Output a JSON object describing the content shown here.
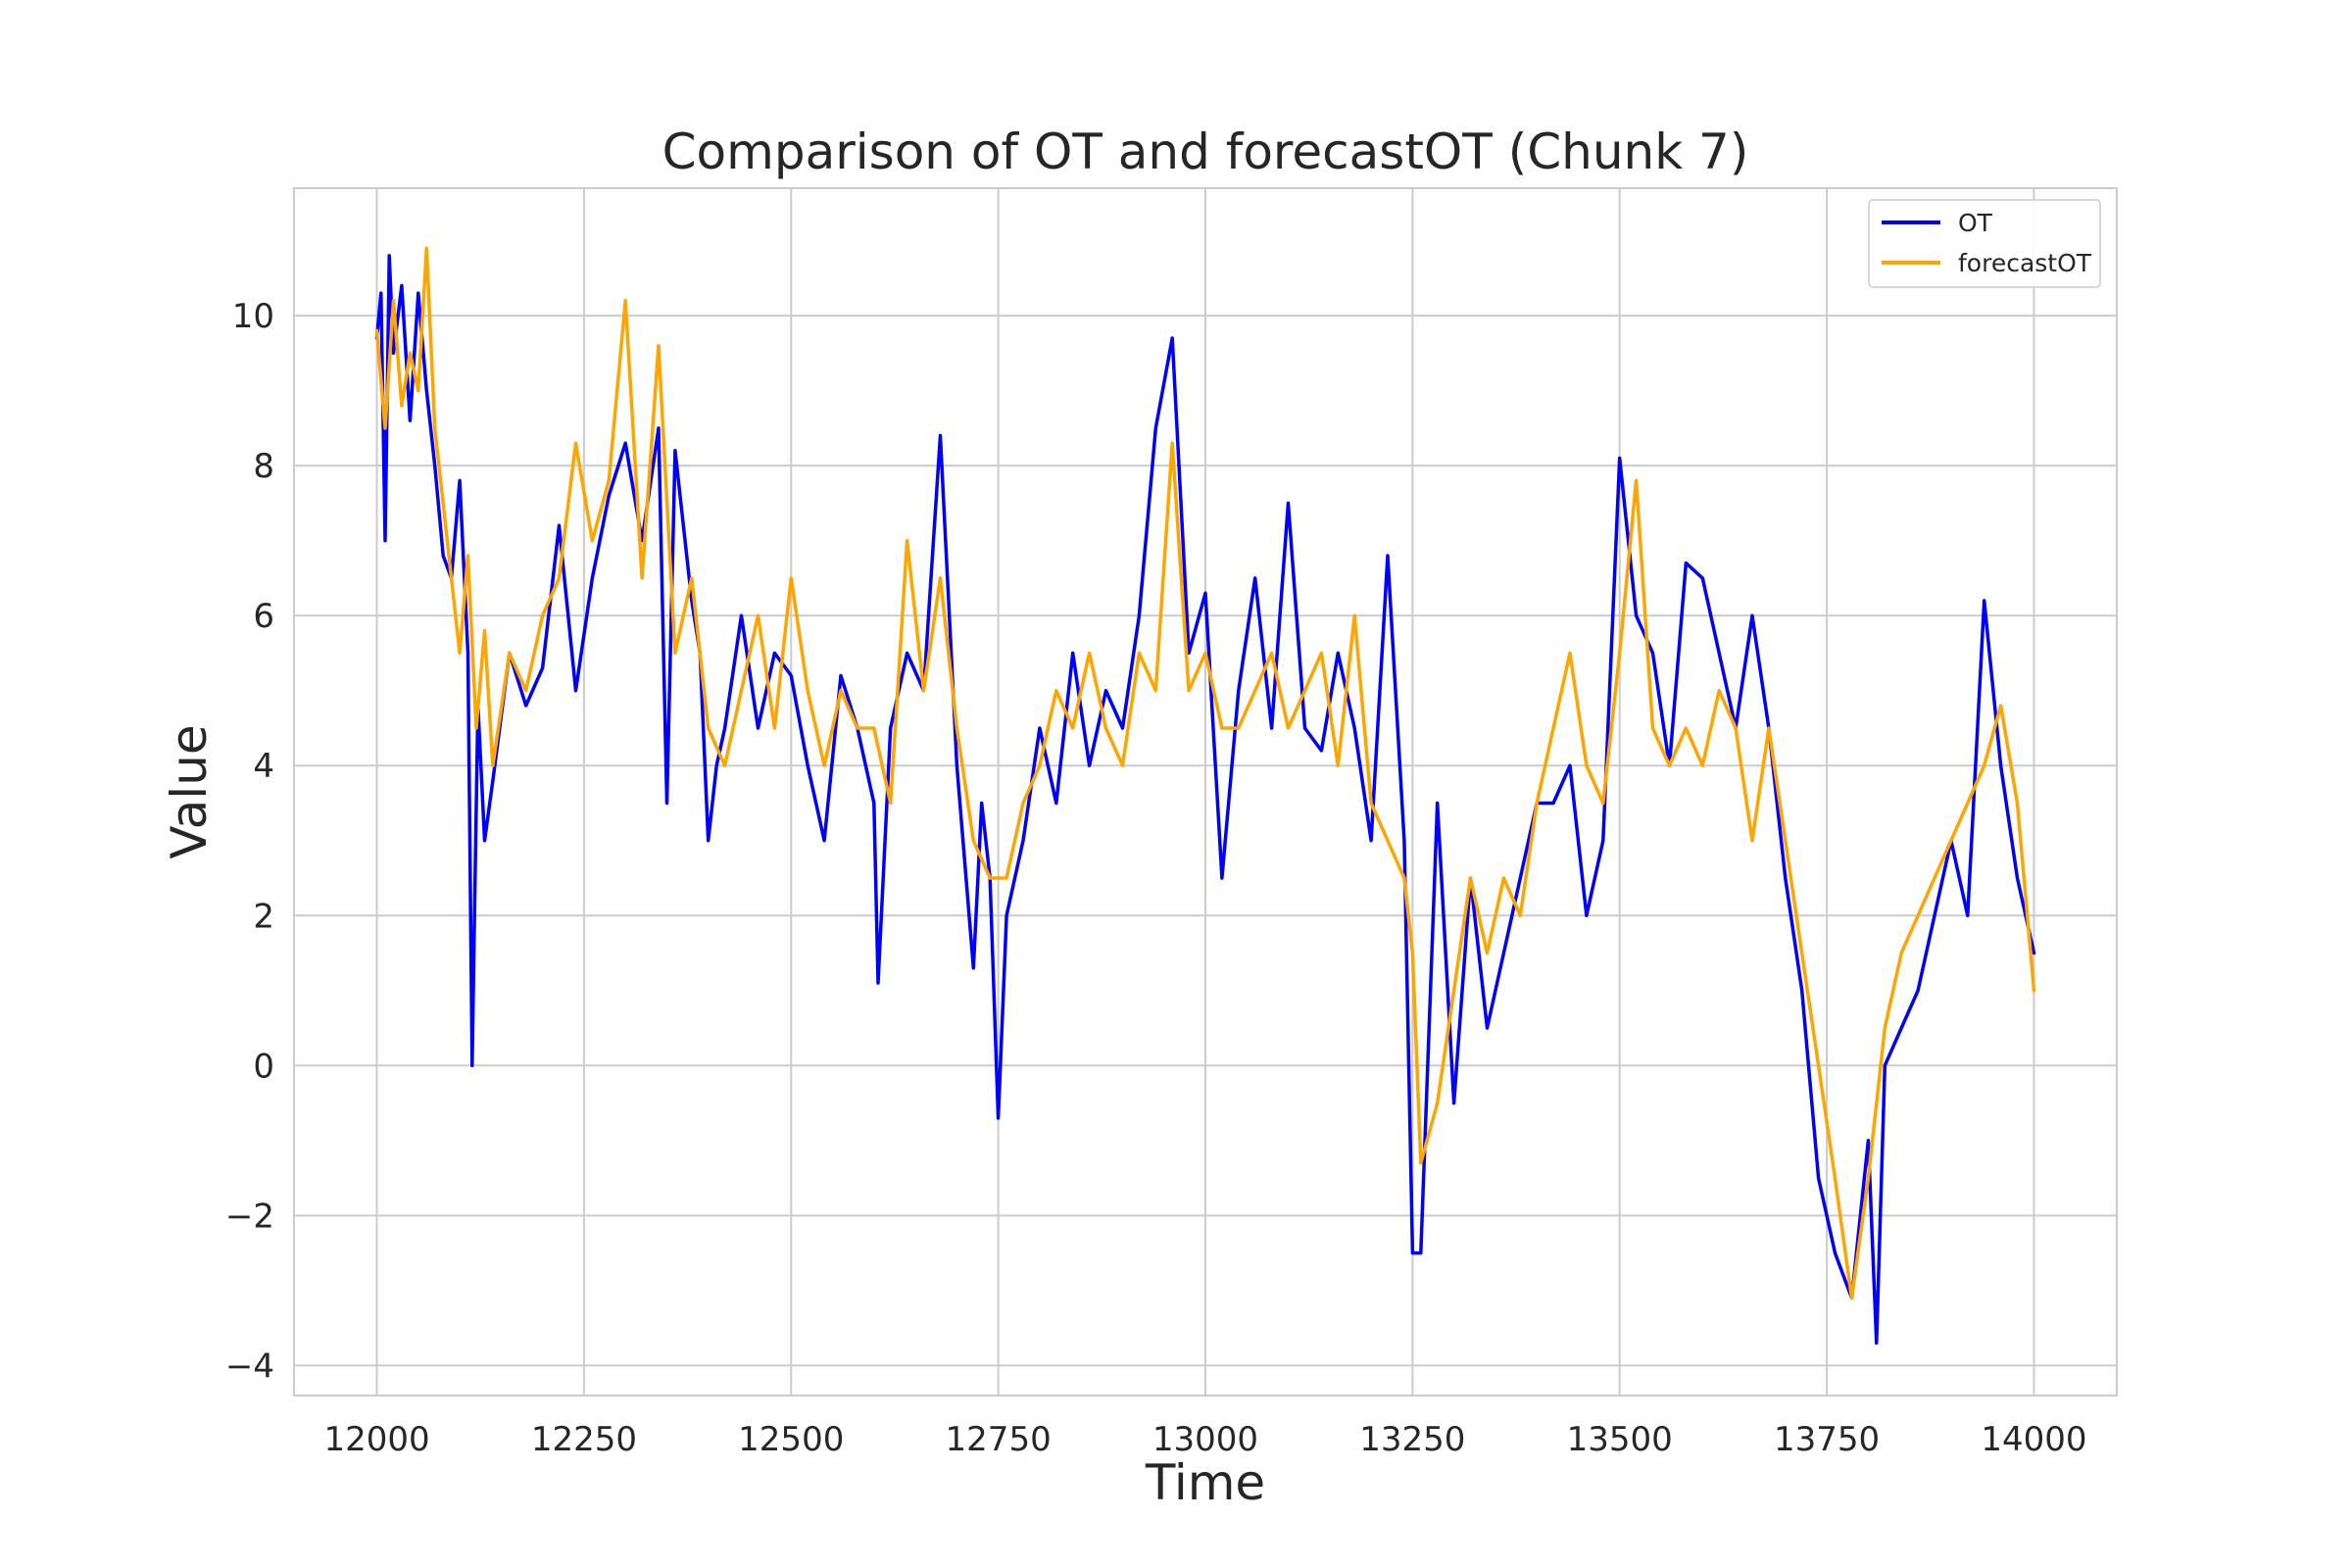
{
  "chart_data": {
    "type": "line",
    "title": "Comparison of OT and forecastOT (Chunk 7)",
    "xlabel": "Time",
    "ylabel": "Value",
    "xlim": [
      11900,
      14100
    ],
    "ylim": [
      -4.4,
      11.7
    ],
    "xticks": [
      12000,
      12250,
      12500,
      12750,
      13000,
      13250,
      13500,
      13750,
      14000
    ],
    "yticks": [
      -4,
      -2,
      0,
      2,
      4,
      6,
      8,
      10
    ],
    "ytick_labels": [
      "−4",
      "−2",
      "0",
      "2",
      "4",
      "6",
      "8",
      "10"
    ],
    "grid": true,
    "legend_position": "top-right",
    "series": [
      {
        "name": "OT",
        "color": "#0000ff",
        "x": [
          12000,
          12005,
          12010,
          12015,
          12020,
          12030,
          12040,
          12050,
          12060,
          12070,
          12080,
          12090,
          12100,
          12110,
          12115,
          12118,
          12122,
          12130,
          12140,
          12160,
          12180,
          12200,
          12220,
          12240,
          12260,
          12280,
          12300,
          12320,
          12340,
          12350,
          12360,
          12380,
          12390,
          12400,
          12410,
          12420,
          12440,
          12460,
          12480,
          12500,
          12520,
          12540,
          12560,
          12580,
          12600,
          12605,
          12620,
          12640,
          12660,
          12680,
          12700,
          12720,
          12730,
          12740,
          12750,
          12760,
          12780,
          12800,
          12820,
          12840,
          12860,
          12880,
          12900,
          12920,
          12940,
          12960,
          12980,
          13000,
          13020,
          13040,
          13060,
          13080,
          13100,
          13120,
          13140,
          13160,
          13180,
          13200,
          13220,
          13240,
          13250,
          13260,
          13280,
          13300,
          13320,
          13340,
          13360,
          13380,
          13400,
          13420,
          13440,
          13460,
          13480,
          13500,
          13520,
          13540,
          13560,
          13580,
          13600,
          13620,
          13640,
          13660,
          13680,
          13700,
          13720,
          13740,
          13760,
          13780,
          13800,
          13810,
          13820,
          13840,
          13860,
          13880,
          13900,
          13920,
          13940,
          13960,
          13980,
          14000
        ],
        "values": [
          9.7,
          10.3,
          7.0,
          10.8,
          9.5,
          10.4,
          8.6,
          10.3,
          9.0,
          8.0,
          6.8,
          6.5,
          7.8,
          5.5,
          0.0,
          2.1,
          4.8,
          3.0,
          3.8,
          5.5,
          4.8,
          5.3,
          7.2,
          5.0,
          6.5,
          7.6,
          8.3,
          7.0,
          8.5,
          3.5,
          8.2,
          6.2,
          5.5,
          3.0,
          4.0,
          4.5,
          6.0,
          4.5,
          5.5,
          5.2,
          4.0,
          3.0,
          5.2,
          4.5,
          3.5,
          1.1,
          4.5,
          5.5,
          5.0,
          8.4,
          4.0,
          1.3,
          3.5,
          2.5,
          -0.7,
          2.0,
          3.0,
          4.5,
          3.5,
          5.5,
          4.0,
          5.0,
          4.5,
          6.0,
          8.5,
          9.7,
          5.5,
          6.3,
          2.5,
          5.0,
          6.5,
          4.5,
          7.5,
          4.5,
          4.2,
          5.5,
          4.5,
          3.0,
          6.8,
          3.0,
          -2.5,
          -2.5,
          3.5,
          -0.5,
          2.5,
          0.5,
          1.5,
          2.5,
          3.5,
          3.5,
          4.0,
          2.0,
          3.0,
          8.1,
          6.0,
          5.5,
          4.0,
          6.7,
          6.5,
          5.5,
          4.5,
          6.0,
          4.5,
          2.5,
          1.0,
          -1.5,
          -2.5,
          -3.1,
          -1.0,
          -3.7,
          0.0,
          0.5,
          1.0,
          2.0,
          3.0,
          2.0,
          6.2,
          4.0,
          2.5,
          1.5
        ]
      },
      {
        "name": "forecastOT",
        "color": "#ffa500",
        "x": [
          12000,
          12010,
          12020,
          12030,
          12040,
          12050,
          12060,
          12070,
          12080,
          12090,
          12100,
          12110,
          12120,
          12130,
          12140,
          12160,
          12180,
          12200,
          12220,
          12240,
          12260,
          12280,
          12300,
          12320,
          12340,
          12360,
          12380,
          12400,
          12420,
          12440,
          12460,
          12480,
          12500,
          12520,
          12540,
          12560,
          12580,
          12600,
          12620,
          12640,
          12660,
          12680,
          12700,
          12720,
          12740,
          12760,
          12780,
          12800,
          12820,
          12840,
          12860,
          12880,
          12900,
          12920,
          12940,
          12960,
          12980,
          13000,
          13020,
          13040,
          13060,
          13080,
          13100,
          13120,
          13140,
          13160,
          13180,
          13200,
          13220,
          13240,
          13250,
          13260,
          13280,
          13300,
          13320,
          13340,
          13360,
          13380,
          13400,
          13420,
          13440,
          13460,
          13480,
          13500,
          13520,
          13540,
          13560,
          13580,
          13600,
          13620,
          13640,
          13660,
          13680,
          13700,
          13720,
          13740,
          13760,
          13780,
          13800,
          13820,
          13840,
          13860,
          13880,
          13900,
          13920,
          13940,
          13960,
          13980,
          14000
        ],
        "values": [
          9.8,
          8.5,
          10.2,
          8.8,
          9.5,
          9.0,
          10.9,
          8.5,
          7.5,
          6.5,
          5.5,
          6.8,
          4.5,
          5.8,
          4.0,
          5.5,
          5.0,
          6.0,
          6.5,
          8.3,
          7.0,
          7.8,
          10.2,
          6.5,
          9.6,
          5.5,
          6.5,
          4.5,
          4.0,
          5.0,
          6.0,
          4.5,
          6.5,
          5.0,
          4.0,
          5.0,
          4.5,
          4.5,
          3.5,
          7.0,
          5.0,
          6.5,
          4.5,
          3.0,
          2.5,
          2.5,
          3.5,
          4.0,
          5.0,
          4.5,
          5.5,
          4.5,
          4.0,
          5.5,
          5.0,
          8.3,
          5.0,
          5.5,
          4.5,
          4.5,
          5.0,
          5.5,
          4.5,
          5.0,
          5.5,
          4.0,
          6.0,
          3.5,
          3.0,
          2.5,
          1.5,
          -1.3,
          -0.5,
          1.0,
          2.5,
          1.5,
          2.5,
          2.0,
          3.5,
          4.5,
          5.5,
          4.0,
          3.5,
          5.5,
          7.8,
          4.5,
          4.0,
          4.5,
          4.0,
          5.0,
          4.5,
          3.0,
          4.5,
          3.0,
          1.5,
          0.0,
          -1.5,
          -3.1,
          -1.5,
          0.5,
          1.5,
          2.0,
          2.5,
          3.0,
          3.5,
          4.0,
          4.8,
          3.5,
          1.0
        ]
      }
    ]
  }
}
